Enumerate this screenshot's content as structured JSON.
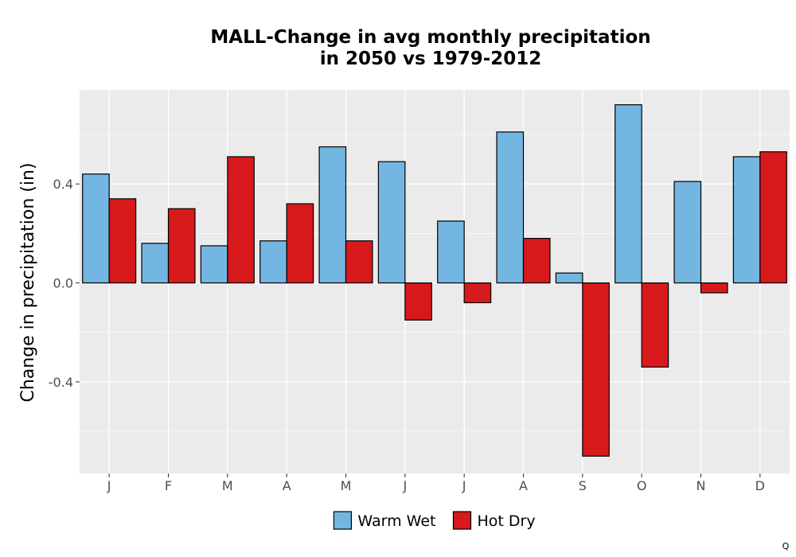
{
  "chart_data": {
    "type": "bar",
    "title_line1": "MALL-Change in avg monthly precipitation",
    "title_line2": "in 2050 vs 1979-2012",
    "xlabel": "",
    "ylabel": "Change in precipitation (in)",
    "categories": [
      "J",
      "F",
      "M",
      "A",
      "M",
      "J",
      "J",
      "A",
      "S",
      "O",
      "N",
      "D"
    ],
    "series": [
      {
        "name": "Warm Wet",
        "color": "#74b6e2",
        "values": [
          0.44,
          0.16,
          0.15,
          0.17,
          0.55,
          0.49,
          0.25,
          0.61,
          0.04,
          0.72,
          0.41,
          0.51
        ]
      },
      {
        "name": "Hot Dry",
        "color": "#d7191c",
        "values": [
          0.34,
          0.3,
          0.51,
          0.32,
          0.17,
          -0.15,
          -0.08,
          0.18,
          -0.7,
          -0.34,
          -0.04,
          0.53
        ]
      }
    ],
    "ylim": [
      -0.77,
      0.78
    ],
    "yticks": [
      -0.4,
      0.0,
      0.4
    ],
    "ytick_labels": [
      "-0.4",
      "0.0",
      "0.4"
    ],
    "grid": true,
    "panel_color": "#ebebeb",
    "legend_position": "bottom"
  },
  "corner_mark": "Q"
}
